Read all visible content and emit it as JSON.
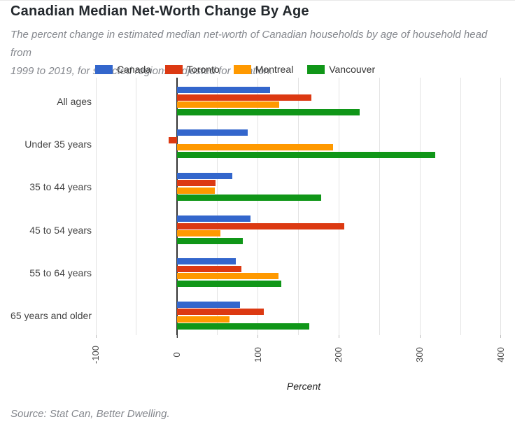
{
  "page": {
    "title": "Canadian Median Net-Worth Change By Age",
    "subtitle_lines": [
      "The percent change in estimated median net-worth of Canadian households by age of household head from",
      "1999 to 2019, for selected regions. Adjusted for inflation."
    ],
    "source": "Source: Stat Can, Better Dwelling."
  },
  "chart_data": {
    "type": "bar",
    "orientation": "horizontal",
    "title": "Canadian Median Net-Worth Change By Age",
    "categories": [
      "All ages",
      "Under 35 years",
      "35 to 44 years",
      "45 to 54 years",
      "55 to 64 years",
      "65 years and older"
    ],
    "series": [
      {
        "name": "Canada",
        "color": "#3366cc",
        "values": [
          115,
          87,
          68,
          91,
          73,
          78
        ]
      },
      {
        "name": "Toronto",
        "color": "#dc3912",
        "values": [
          166,
          -10,
          48,
          207,
          80,
          107
        ]
      },
      {
        "name": "Montreal",
        "color": "#ff9900",
        "values": [
          126,
          193,
          47,
          54,
          125,
          65
        ]
      },
      {
        "name": "Vancouver",
        "color": "#109618",
        "values": [
          226,
          319,
          178,
          81,
          129,
          163
        ]
      }
    ],
    "xlabel": "Percent",
    "xlim": [
      -100,
      413
    ],
    "x_major_ticks": [
      -100,
      0,
      100,
      200,
      300,
      400
    ],
    "x_grid_step": 50,
    "grid": true,
    "legend_position": "top",
    "colors": {
      "grid": "#e3e3e3",
      "zero_axis": "#333333",
      "tick_mark": "#bbbbbb"
    }
  }
}
